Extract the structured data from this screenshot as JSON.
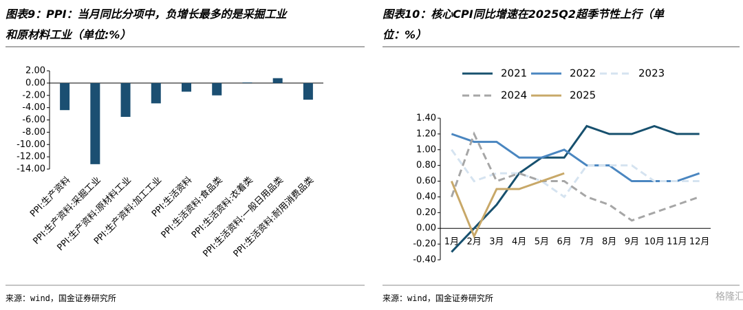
{
  "panels": [
    {
      "title": [
        "图表9：PPI：当月同比分项中，负增长最多的是采掘工业",
        "和原材料工业（单位:%）"
      ],
      "source": "来源：wind，国金证券研究所"
    },
    {
      "title": [
        "图表10：核心CPI同比增速在2025Q2超季节性上行（单",
        "位：%）"
      ],
      "source": "来源：wind，国金证券研究所",
      "watermark": "格隆汇"
    }
  ],
  "chart_data": [
    {
      "type": "bar",
      "color": "#1b4f72",
      "categories": [
        "PPI:生产资料",
        "PPI:生产资料:采掘工业",
        "PPI:生产资料:原材料工业",
        "PPI:生产资料:加工工业",
        "PPI:生活资料",
        "PPI:生活资料:食品类",
        "PPI:生活资料:衣着类",
        "PPI:生活资料:一般日用品类",
        "PPI:生活资料:耐用消费品类"
      ],
      "values": [
        -4.4,
        -13.2,
        -5.5,
        -3.3,
        -1.4,
        -2.0,
        0.1,
        0.8,
        -2.7
      ],
      "ylim": [
        -14,
        2
      ],
      "yticks": [
        {
          "value": 2,
          "label": "2.00"
        },
        {
          "value": 0,
          "label": "0.00"
        },
        {
          "value": -2,
          "label": "-2.00"
        },
        {
          "value": -4,
          "label": "-4.00"
        },
        {
          "value": -6,
          "label": "-6.00"
        },
        {
          "value": -8,
          "label": "-8.00"
        },
        {
          "value": -10,
          "label": "-10.00"
        },
        {
          "value": -12,
          "label": "-12.00"
        },
        {
          "value": -14,
          "label": "-14.00"
        }
      ]
    },
    {
      "type": "line",
      "categories": [
        "1月",
        "2月",
        "3月",
        "4月",
        "5月",
        "6月",
        "7月",
        "8月",
        "9月",
        "10月",
        "11月",
        "12月"
      ],
      "series": [
        {
          "name": "2021",
          "color": "#17506e",
          "dash": false,
          "values": [
            -0.3,
            0.0,
            0.3,
            0.7,
            0.9,
            0.9,
            1.3,
            1.2,
            1.2,
            1.3,
            1.2,
            1.2
          ]
        },
        {
          "name": "2022",
          "color": "#4a86c0",
          "dash": false,
          "values": [
            1.2,
            1.1,
            1.1,
            0.9,
            0.9,
            1.0,
            0.8,
            0.8,
            0.6,
            0.6,
            0.6,
            0.7
          ]
        },
        {
          "name": "2023",
          "color": "#d5e3f0",
          "dash": true,
          "values": [
            1.0,
            0.6,
            0.7,
            0.7,
            0.6,
            0.4,
            0.8,
            0.8,
            0.8,
            0.6,
            0.6,
            0.6
          ]
        },
        {
          "name": "2024",
          "color": "#a6a6a6",
          "dash": true,
          "values": [
            0.4,
            1.2,
            0.6,
            0.7,
            0.6,
            0.6,
            0.4,
            0.3,
            0.1,
            0.2,
            0.3,
            0.4
          ]
        },
        {
          "name": "2025",
          "color": "#c8a868",
          "dash": false,
          "values": [
            0.6,
            -0.1,
            0.5,
            0.5,
            0.6,
            0.7,
            null,
            null,
            null,
            null,
            null,
            null
          ]
        }
      ],
      "ylim": [
        -0.4,
        1.4
      ],
      "yticks": [
        {
          "value": 1.4,
          "label": "1.40"
        },
        {
          "value": 1.2,
          "label": "1.20"
        },
        {
          "value": 1,
          "label": "1.00"
        },
        {
          "value": 0.8,
          "label": "0.80"
        },
        {
          "value": 0.6,
          "label": "0.60"
        },
        {
          "value": 0.4,
          "label": "0.40"
        },
        {
          "value": 0.2,
          "label": "0.20"
        },
        {
          "value": 0,
          "label": "0.00"
        },
        {
          "value": -0.2,
          "label": "-0.20"
        },
        {
          "value": -0.4,
          "label": "-0.40"
        }
      ]
    }
  ]
}
